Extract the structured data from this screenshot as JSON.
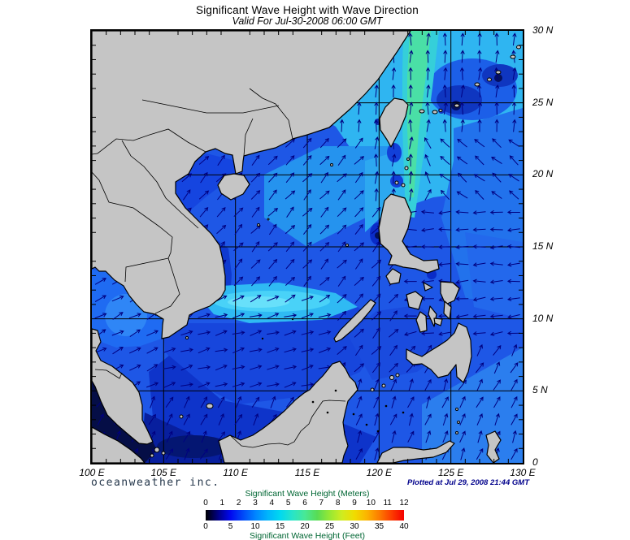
{
  "header": {
    "title": "Significant Wave Height with Wave Direction",
    "subtitle": "Valid For Jul-30-2008 06:00 GMT"
  },
  "footer": {
    "branding": "oceanweather inc.",
    "plotted": "Plotted at Jul 29, 2008 21:44 GMT"
  },
  "axes": {
    "lat_labels": [
      {
        "text": "30 N",
        "lat": 30
      },
      {
        "text": "25 N",
        "lat": 25
      },
      {
        "text": "20 N",
        "lat": 20
      },
      {
        "text": "15 N",
        "lat": 15
      },
      {
        "text": "10 N",
        "lat": 10
      },
      {
        "text": "5 N",
        "lat": 5
      },
      {
        "text": "0",
        "lat": 0
      }
    ],
    "lon_labels": [
      {
        "text": "100 E",
        "lon": 100
      },
      {
        "text": "105 E",
        "lon": 105
      },
      {
        "text": "110 E",
        "lon": 110
      },
      {
        "text": "115 E",
        "lon": 115
      },
      {
        "text": "120 E",
        "lon": 120
      },
      {
        "text": "125 E",
        "lon": 125
      },
      {
        "text": "130 E",
        "lon": 130
      }
    ]
  },
  "legend": {
    "meters": {
      "title": "Significant Wave Height (Meters)",
      "ticks": [
        0,
        1,
        2,
        3,
        4,
        5,
        6,
        7,
        8,
        9,
        10,
        11,
        12
      ],
      "max": 12
    },
    "feet": {
      "title": "Significant Wave Height (Feet)",
      "ticks": [
        0,
        5,
        10,
        15,
        20,
        25,
        30,
        35,
        40
      ],
      "max": 40
    },
    "gradient_colors": [
      "#000000",
      "#000085",
      "#0008f0",
      "#0048f8",
      "#0084ff",
      "#00b4fc",
      "#00d8f0",
      "#28e4c8",
      "#48e896",
      "#58dc54",
      "#96e834",
      "#d0ec20",
      "#f0dc00",
      "#fcb400",
      "#fc7c00",
      "#fc3c00",
      "#f40000"
    ]
  },
  "map": {
    "lon_range": [
      100,
      130
    ],
    "lat_range": [
      0,
      30
    ],
    "grid_interval_deg": 5,
    "tick_interval_deg": 1,
    "land_color": "#c5c5c5",
    "arrow_color": "#000080",
    "grid_color": "#000000",
    "wave_direction_regions": [
      {
        "lon": [
          116.5,
          130.5
        ],
        "lat": [
          23,
          30.5
        ],
        "angle_deg": 88
      },
      {
        "lon": [
          119.3,
          122.5
        ],
        "lat": [
          18.5,
          23
        ],
        "angle_deg": 85
      },
      {
        "lon": [
          121.3,
          124.5
        ],
        "lat": [
          19,
          24
        ],
        "angle_deg": 115
      },
      {
        "lon": [
          124.5,
          130.5
        ],
        "lat": [
          18.5,
          24
        ],
        "angle_deg": 140
      },
      {
        "lon": [
          121.2,
          130.5
        ],
        "lat": [
          12.5,
          18.5
        ],
        "angle_deg": 182
      },
      {
        "lon": [
          121.2,
          130.5
        ],
        "lat": [
          8,
          12.5
        ],
        "angle_deg": 188
      },
      {
        "lon": [
          125,
          130.5
        ],
        "lat": [
          3.5,
          8
        ],
        "angle_deg": 60
      },
      {
        "lon": [
          116.5,
          130.5
        ],
        "lat": [
          0,
          6
        ],
        "angle_deg": 68
      },
      {
        "lon": [
          116.5,
          122.5
        ],
        "lat": [
          6,
          12.5
        ],
        "angle_deg": 48
      },
      {
        "lon": [
          99.5,
          104.8
        ],
        "lat": [
          4.5,
          13.6
        ],
        "angle_deg": 28
      },
      {
        "lon": [
          101,
          117
        ],
        "lat": [
          0,
          4.9
        ],
        "angle_deg": 62
      },
      {
        "lon": [
          104.8,
          121.3
        ],
        "lat": [
          12.5,
          23.5
        ],
        "angle_deg": 48
      },
      {
        "lon": [
          104.8,
          121.3
        ],
        "lat": [
          10.8,
          12.5
        ],
        "angle_deg": 28
      },
      {
        "lon": [
          104.8,
          121.3
        ],
        "lat": [
          4.9,
          10.8
        ],
        "angle_deg": 16
      }
    ],
    "default_angle_deg": 55
  }
}
